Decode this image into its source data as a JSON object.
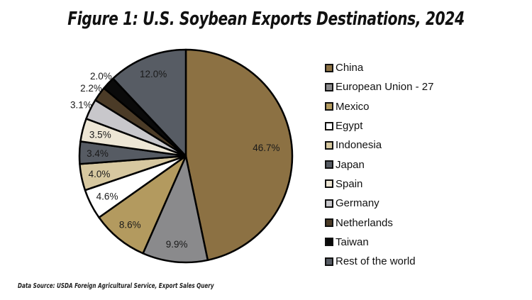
{
  "chart_data": {
    "type": "pie",
    "title": "Figure 1: U.S. Soybean Exports Destinations, 2024",
    "categories": [
      "China",
      "European Union - 27",
      "Mexico",
      "Egypt",
      "Indonesia",
      "Japan",
      "Spain",
      "Germany",
      "Netherlands",
      "Taiwan",
      "Rest of the world"
    ],
    "values": [
      46.7,
      9.9,
      8.6,
      4.6,
      4.0,
      3.4,
      3.5,
      3.1,
      2.2,
      2.0,
      12.0
    ],
    "labels": [
      "46.7%",
      "9.9%",
      "8.6%",
      "4.6%",
      "4.0%",
      "3.4%",
      "3.5%",
      "3.1%",
      "2.2%",
      "2.0%",
      "12.0%"
    ],
    "colors": [
      "#8c7143",
      "#8a8a8c",
      "#b39a5f",
      "#ffffff",
      "#d7c8a0",
      "#565b63",
      "#ede6d5",
      "#c8c7cb",
      "#4b3b27",
      "#0a0a0a",
      "#575c64"
    ],
    "slice_order": "clockwise from 12 o'clock",
    "legend_position": "right",
    "xlabel": "",
    "ylabel": ""
  },
  "legend": {
    "items": [
      {
        "label": "China",
        "color": "#8c7143"
      },
      {
        "label": "European Union - 27",
        "color": "#8a8a8c"
      },
      {
        "label": "Mexico",
        "color": "#b39a5f"
      },
      {
        "label": "Egypt",
        "color": "#ffffff"
      },
      {
        "label": "Indonesia",
        "color": "#d7c8a0"
      },
      {
        "label": "Japan",
        "color": "#565b63"
      },
      {
        "label": "Spain",
        "color": "#ede6d5"
      },
      {
        "label": "Germany",
        "color": "#c8c7cb"
      },
      {
        "label": "Netherlands",
        "color": "#4b3b27"
      },
      {
        "label": "Taiwan",
        "color": "#0a0a0a"
      },
      {
        "label": "Rest of the world",
        "color": "#575c64"
      }
    ]
  },
  "footer": {
    "source": "Data Source: USDA Foreign Agricultural Service, Export Sales Query"
  }
}
